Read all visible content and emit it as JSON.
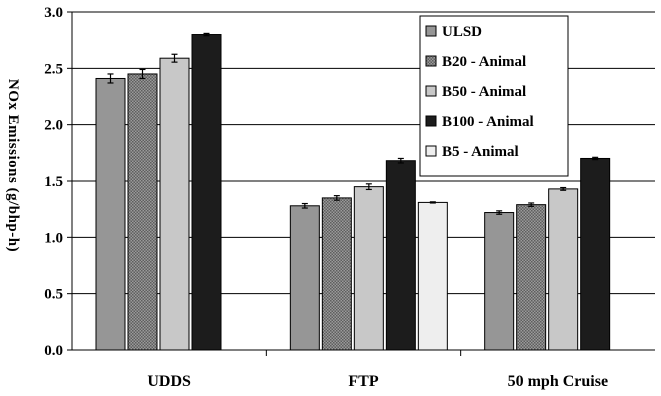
{
  "chart_data": {
    "type": "bar",
    "title": "",
    "xlabel": "",
    "ylabel": "NOx Emissions (g/bhp-h)",
    "ylim": [
      0,
      3.0
    ],
    "yticks": [
      "0.0",
      "0.5",
      "1.0",
      "1.5",
      "2.0",
      "2.5",
      "3.0"
    ],
    "categories": [
      "UDDS",
      "FTP",
      "50 mph Cruise"
    ],
    "legend_position": "top-right",
    "grid": true,
    "series": [
      {
        "name": "ULSD",
        "color": "#969696",
        "pattern": "solid-gray",
        "values": [
          2.41,
          1.28,
          1.22
        ],
        "errors": [
          0.04,
          0.02,
          0.015
        ]
      },
      {
        "name": "B20 - Animal",
        "color": "#8a8a8a",
        "pattern": "crosshatch",
        "values": [
          2.45,
          1.35,
          1.29
        ],
        "errors": [
          0.04,
          0.02,
          0.015
        ]
      },
      {
        "name": "B50 - Animal",
        "color": "#c8c8c8",
        "pattern": "solid-light-gray",
        "values": [
          2.59,
          1.45,
          1.43
        ],
        "errors": [
          0.035,
          0.025,
          0.012
        ]
      },
      {
        "name": "B100 - Animal",
        "color": "#1c1c1c",
        "pattern": "solid-black",
        "values": [
          2.8,
          1.68,
          1.7
        ],
        "errors": [
          0.01,
          0.02,
          0.01
        ]
      },
      {
        "name": "B5 - Animal",
        "color": "#eeeeee",
        "pattern": "solid-white",
        "values": [
          null,
          1.31,
          null
        ],
        "errors": [
          null,
          0.005,
          null
        ]
      }
    ]
  }
}
